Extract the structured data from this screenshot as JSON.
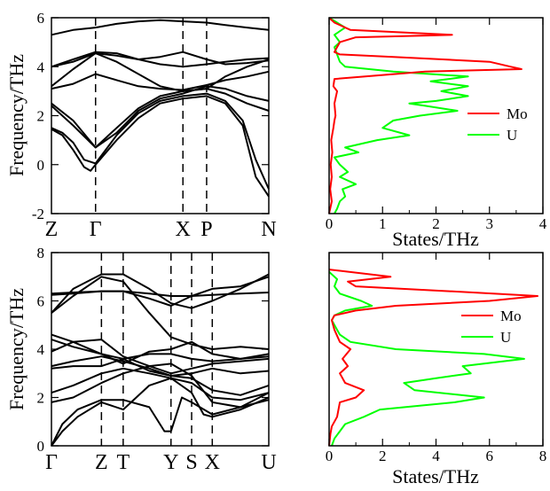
{
  "colors": {
    "frame": "#000000",
    "band": "#000000",
    "mo": "#ff0000",
    "u": "#00ff00"
  },
  "chart_data": [
    {
      "id": "dispersion-top",
      "type": "line",
      "ylabel": "Frequency/THz",
      "ylim": [
        -2,
        6
      ],
      "yticks": [
        -2,
        0,
        2,
        4,
        6
      ],
      "kpoints": [
        {
          "label": "Z",
          "x": 0.0
        },
        {
          "label": "Γ",
          "x": 0.203
        },
        {
          "label": "X",
          "x": 0.605
        },
        {
          "label": "P",
          "x": 0.714
        },
        {
          "label": "N",
          "x": 1.0
        }
      ],
      "series": [
        {
          "x": [
            0,
            0.1,
            0.203,
            0.3,
            0.4,
            0.5,
            0.605,
            0.714,
            0.8,
            0.9,
            1.0
          ],
          "values": [
            5.3,
            5.5,
            5.6,
            5.75,
            5.85,
            5.9,
            5.85,
            5.8,
            5.7,
            5.6,
            5.5
          ]
        },
        {
          "x": [
            0,
            0.1,
            0.203,
            0.3,
            0.4,
            0.5,
            0.605,
            0.714,
            0.8,
            0.9,
            1.0
          ],
          "values": [
            4.0,
            4.3,
            4.6,
            4.55,
            4.3,
            4.1,
            4.0,
            4.1,
            4.2,
            4.3,
            4.35
          ]
        },
        {
          "x": [
            0,
            0.1,
            0.203,
            0.3,
            0.4,
            0.5,
            0.605,
            0.714,
            0.8,
            0.9,
            1.0
          ],
          "values": [
            4.0,
            4.2,
            4.55,
            4.45,
            4.3,
            4.4,
            4.6,
            4.3,
            4.1,
            4.15,
            4.25
          ]
        },
        {
          "x": [
            0,
            0.1,
            0.203,
            0.3,
            0.4,
            0.5,
            0.605,
            0.714,
            0.8,
            0.9,
            1.0
          ],
          "values": [
            3.2,
            3.9,
            4.55,
            4.2,
            3.7,
            3.2,
            3.0,
            3.1,
            3.6,
            4.0,
            4.3
          ]
        },
        {
          "x": [
            0,
            0.1,
            0.203,
            0.3,
            0.4,
            0.5,
            0.605,
            0.714,
            0.8,
            0.9,
            1.0
          ],
          "values": [
            3.1,
            3.3,
            3.7,
            3.45,
            3.2,
            3.1,
            3.05,
            3.25,
            3.45,
            3.6,
            3.8
          ]
        },
        {
          "x": [
            0,
            0.1,
            0.203,
            0.3,
            0.4,
            0.5,
            0.605,
            0.714,
            0.8,
            0.9,
            1.0
          ],
          "values": [
            2.5,
            1.8,
            0.7,
            1.5,
            2.3,
            2.8,
            3.0,
            3.1,
            2.9,
            2.5,
            2.2
          ]
        },
        {
          "x": [
            0,
            0.1,
            0.203,
            0.3,
            0.4,
            0.5,
            0.605,
            0.714,
            0.8,
            0.9,
            1.0
          ],
          "values": [
            2.4,
            1.6,
            0.7,
            1.3,
            2.2,
            2.7,
            2.9,
            3.2,
            3.1,
            2.8,
            2.6
          ]
        },
        {
          "x": [
            0,
            0.05,
            0.1,
            0.15,
            0.203,
            0.3,
            0.4,
            0.5,
            0.605,
            0.714,
            0.8,
            0.88,
            0.94,
            1.0
          ],
          "values": [
            1.5,
            1.3,
            0.9,
            0.2,
            0.05,
            1.2,
            2.1,
            2.6,
            2.8,
            2.9,
            2.6,
            1.8,
            0.2,
            -1.0
          ]
        },
        {
          "x": [
            0,
            0.05,
            0.1,
            0.15,
            0.18,
            0.203,
            0.3,
            0.4,
            0.5,
            0.605,
            0.714,
            0.8,
            0.88,
            0.94,
            1.0
          ],
          "values": [
            1.45,
            1.2,
            0.6,
            -0.1,
            -0.25,
            0.0,
            1.0,
            1.9,
            2.5,
            2.7,
            2.8,
            2.5,
            1.6,
            -0.5,
            -1.3
          ]
        }
      ]
    },
    {
      "id": "dos-top",
      "type": "line",
      "xlabel": "States/THz",
      "xlim": [
        0,
        4
      ],
      "xticks": [
        0,
        1,
        2,
        3,
        4
      ],
      "ylim": [
        -2,
        6
      ],
      "legend_position": "right",
      "series": [
        {
          "name": "Mo",
          "color_key": "mo",
          "y": [
            -2,
            -1.5,
            -1,
            -0.5,
            0,
            0.5,
            1,
            1.5,
            1.8,
            2,
            2.5,
            3,
            3.2,
            3.5,
            3.8,
            3.9,
            4.0,
            4.2,
            4.4,
            4.5,
            4.6,
            4.8,
            5.0,
            5.2,
            5.3,
            5.5,
            5.8,
            6.0
          ],
          "values": [
            0,
            0.05,
            0.02,
            0.05,
            0.03,
            0.06,
            0.04,
            0.08,
            0.1,
            0.12,
            0.1,
            0.15,
            0.08,
            0.1,
            1.8,
            3.6,
            3.4,
            3.0,
            1.2,
            0.2,
            0.1,
            0.15,
            0.2,
            0.5,
            2.3,
            0.4,
            0.1,
            0
          ]
        },
        {
          "name": "U",
          "color_key": "u",
          "y": [
            -2,
            -1.8,
            -1.5,
            -1.3,
            -1,
            -0.8,
            -0.5,
            -0.3,
            0,
            0.3,
            0.5,
            0.7,
            1,
            1.2,
            1.5,
            1.8,
            2,
            2.2,
            2.4,
            2.5,
            2.6,
            2.8,
            3,
            3.2,
            3.4,
            3.6,
            3.8,
            4.0,
            4.2,
            4.5,
            4.8,
            5.0,
            5.3,
            5.6,
            5.8,
            6.0
          ],
          "values": [
            0.1,
            0.15,
            0.2,
            0.3,
            0.25,
            0.5,
            0.2,
            0.35,
            0.2,
            0.1,
            0.55,
            0.3,
            0.9,
            1.5,
            1.0,
            1.2,
            1.7,
            2.4,
            1.8,
            1.5,
            2.0,
            2.6,
            2.1,
            2.6,
            1.9,
            2.6,
            1.2,
            0.3,
            0.2,
            0.15,
            0.1,
            0.2,
            0.1,
            0.3,
            0.15,
            0
          ]
        }
      ]
    },
    {
      "id": "dispersion-bottom",
      "type": "line",
      "ylabel": "Frequency/THz",
      "ylim": [
        0,
        8
      ],
      "yticks": [
        0,
        2,
        4,
        6,
        8
      ],
      "kpoints": [
        {
          "label": "Γ",
          "x": 0.0
        },
        {
          "label": "Z",
          "x": 0.23
        },
        {
          "label": "T",
          "x": 0.33
        },
        {
          "label": "Y",
          "x": 0.55
        },
        {
          "label": "S",
          "x": 0.645
        },
        {
          "label": "X",
          "x": 0.74
        },
        {
          "label": "U",
          "x": 1.0
        }
      ],
      "series": [
        {
          "x": [
            0,
            0.1,
            0.23,
            0.33,
            0.45,
            0.55,
            0.645,
            0.74,
            0.87,
            1.0
          ],
          "values": [
            6.3,
            6.35,
            6.4,
            6.4,
            6.3,
            6.2,
            6.2,
            6.25,
            6.3,
            6.35
          ]
        },
        {
          "x": [
            0,
            0.1,
            0.23,
            0.33,
            0.45,
            0.55,
            0.645,
            0.74,
            0.87,
            1.0
          ],
          "values": [
            6.25,
            6.3,
            6.4,
            6.4,
            6.1,
            5.8,
            6.2,
            6.5,
            6.6,
            7.0
          ]
        },
        {
          "x": [
            0,
            0.1,
            0.23,
            0.33,
            0.45,
            0.55,
            0.645,
            0.74,
            0.87,
            1.0
          ],
          "values": [
            5.5,
            6.5,
            7.1,
            7.1,
            6.5,
            5.9,
            5.7,
            6.0,
            6.5,
            7.1
          ]
        },
        {
          "x": [
            0,
            0.1,
            0.23,
            0.33,
            0.45,
            0.55,
            0.645,
            0.74,
            0.87,
            1.0
          ],
          "values": [
            5.5,
            6.2,
            7.0,
            6.8,
            5.5,
            4.5,
            4.2,
            4.0,
            4.1,
            4.0
          ]
        },
        {
          "x": [
            0,
            0.1,
            0.23,
            0.33,
            0.45,
            0.55,
            0.645,
            0.74,
            0.87,
            1.0
          ],
          "values": [
            4.6,
            4.3,
            3.8,
            3.6,
            3.8,
            3.8,
            3.6,
            3.5,
            3.6,
            3.8
          ]
        },
        {
          "x": [
            0,
            0.1,
            0.23,
            0.33,
            0.45,
            0.55,
            0.645,
            0.74,
            0.87,
            1.0
          ],
          "values": [
            4.4,
            4.1,
            3.8,
            3.4,
            3.9,
            4.0,
            4.3,
            3.8,
            3.6,
            3.7
          ]
        },
        {
          "x": [
            0,
            0.1,
            0.23,
            0.33,
            0.45,
            0.55,
            0.645,
            0.74,
            0.87,
            1.0
          ],
          "values": [
            3.9,
            4.3,
            4.4,
            3.7,
            3.3,
            3.0,
            3.2,
            3.4,
            3.5,
            3.6
          ]
        },
        {
          "x": [
            0,
            0.1,
            0.23,
            0.33,
            0.45,
            0.55,
            0.645,
            0.74,
            0.87,
            1.0
          ],
          "values": [
            3.3,
            3.5,
            3.7,
            3.5,
            3.2,
            2.9,
            3.0,
            3.2,
            3.0,
            3.1
          ]
        },
        {
          "x": [
            0,
            0.1,
            0.23,
            0.33,
            0.45,
            0.55,
            0.645,
            0.74,
            0.87,
            1.0
          ],
          "values": [
            3.2,
            3.3,
            3.3,
            3.6,
            3.1,
            2.9,
            2.8,
            2.3,
            2.1,
            2.5
          ]
        },
        {
          "x": [
            0,
            0.1,
            0.23,
            0.33,
            0.45,
            0.55,
            0.645,
            0.74,
            0.87,
            1.0
          ],
          "values": [
            2.2,
            2.5,
            3.0,
            3.2,
            3.0,
            2.8,
            2.6,
            2.0,
            1.9,
            2.2
          ]
        },
        {
          "x": [
            0,
            0.1,
            0.23,
            0.33,
            0.45,
            0.55,
            0.645,
            0.74,
            0.87,
            1.0
          ],
          "values": [
            1.8,
            2.0,
            2.6,
            3.0,
            3.3,
            3.4,
            2.9,
            1.8,
            1.6,
            1.9
          ]
        },
        {
          "x": [
            0,
            0.05,
            0.12,
            0.23,
            0.33,
            0.45,
            0.52,
            0.55,
            0.6,
            0.645,
            0.74,
            0.87,
            1.0
          ],
          "values": [
            0,
            0.9,
            1.5,
            1.9,
            1.9,
            1.6,
            0.6,
            0.6,
            2.0,
            1.8,
            1.3,
            1.6,
            2.2
          ]
        },
        {
          "x": [
            0,
            0.05,
            0.12,
            0.23,
            0.33,
            0.45,
            0.55,
            0.645,
            0.7,
            0.74,
            0.87,
            1.0
          ],
          "values": [
            0,
            0.6,
            1.2,
            1.8,
            1.5,
            2.5,
            2.8,
            2.2,
            1.3,
            1.2,
            1.5,
            2.0
          ]
        }
      ]
    },
    {
      "id": "dos-bottom",
      "type": "line",
      "xlabel": "States/THz",
      "xlim": [
        0,
        8
      ],
      "xticks": [
        0,
        2,
        4,
        6,
        8
      ],
      "ylim": [
        0,
        8
      ],
      "legend_position": "right",
      "series": [
        {
          "name": "Mo",
          "color_key": "mo",
          "y": [
            0,
            0.5,
            0.8,
            1.2,
            1.8,
            2.0,
            2.3,
            2.6,
            3.0,
            3.3,
            3.6,
            4.0,
            4.3,
            4.8,
            5.2,
            5.4,
            5.6,
            5.8,
            6.0,
            6.2,
            6.4,
            6.6,
            6.8,
            7.0,
            7.3
          ],
          "values": [
            0,
            0.05,
            0.1,
            0.3,
            0.4,
            1.0,
            1.3,
            0.6,
            0.4,
            0.7,
            0.5,
            0.8,
            0.4,
            0.2,
            0.1,
            0.2,
            1.0,
            2.5,
            6.0,
            7.8,
            4.5,
            1.0,
            0.7,
            2.3,
            0
          ]
        },
        {
          "name": "U",
          "color_key": "u",
          "y": [
            0,
            0.3,
            0.6,
            0.9,
            1.2,
            1.5,
            1.8,
            2.0,
            2.3,
            2.6,
            2.8,
            3.0,
            3.3,
            3.6,
            3.8,
            4.0,
            4.3,
            4.6,
            5.0,
            5.2,
            5.4,
            5.6,
            5.8,
            6.0,
            6.3,
            6.6,
            6.9,
            7.2
          ],
          "values": [
            0.1,
            0.2,
            0.4,
            0.6,
            1.3,
            1.9,
            4.7,
            5.8,
            3.2,
            2.8,
            4.0,
            5.3,
            5.0,
            7.3,
            5.8,
            2.5,
            0.8,
            0.4,
            0.2,
            0.1,
            0.2,
            0.6,
            1.6,
            1.2,
            0.4,
            0.2,
            0.3,
            0
          ]
        }
      ]
    }
  ]
}
